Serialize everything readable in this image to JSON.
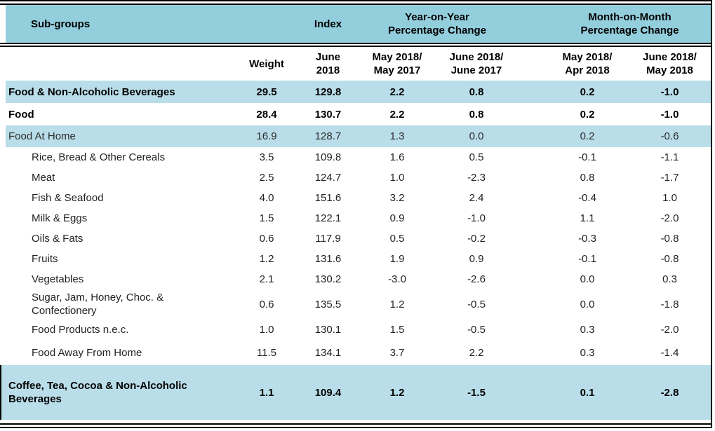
{
  "columns": {
    "subgroups": "Sub-groups",
    "index_group": "Index",
    "yoy_group": "Year-on-Year\nPercentage Change",
    "mom_group": "Month-on-Month\nPercentage Change",
    "weight": "Weight",
    "index_period": "June\n2018",
    "yoy_col1": "May 2018/\nMay 2017",
    "yoy_col2": "June 2018/\nJune 2017",
    "mom_col1": "May 2018/\nApr 2018",
    "mom_col2": "June 2018/\nMay 2018"
  },
  "rows": [
    {
      "label": "Food & Non-Alcoholic Beverages",
      "style": "emphasis-blue",
      "values": [
        "29.5",
        "129.8",
        "2.2",
        "0.8",
        "0.2",
        "-1.0"
      ]
    },
    {
      "label": "Food",
      "style": "emphasis-white",
      "values": [
        "28.4",
        "130.7",
        "2.2",
        "0.8",
        "0.2",
        "-1.0"
      ]
    },
    {
      "label": "Food At Home",
      "style": "highlight",
      "values": [
        "16.9",
        "128.7",
        "1.3",
        "0.0",
        "0.2",
        "-0.6"
      ]
    },
    {
      "label": "Rice, Bread & Other Cereals",
      "style": "item",
      "values": [
        "3.5",
        "109.8",
        "1.6",
        "0.5",
        "-0.1",
        "-1.1"
      ]
    },
    {
      "label": "Meat",
      "style": "item",
      "values": [
        "2.5",
        "124.7",
        "1.0",
        "-2.3",
        "0.8",
        "-1.7"
      ]
    },
    {
      "label": "Fish & Seafood",
      "style": "item",
      "values": [
        "4.0",
        "151.6",
        "3.2",
        "2.4",
        "-0.4",
        "1.0"
      ]
    },
    {
      "label": "Milk & Eggs",
      "style": "item",
      "values": [
        "1.5",
        "122.1",
        "0.9",
        "-1.0",
        "1.1",
        "-2.0"
      ]
    },
    {
      "label": "Oils & Fats",
      "style": "item",
      "values": [
        "0.6",
        "117.9",
        "0.5",
        "-0.2",
        "-0.3",
        "-0.8"
      ]
    },
    {
      "label": "Fruits",
      "style": "item",
      "values": [
        "1.2",
        "131.6",
        "1.9",
        "0.9",
        "-0.1",
        "-0.8"
      ]
    },
    {
      "label": "Vegetables",
      "style": "item",
      "values": [
        "2.1",
        "130.2",
        "-3.0",
        "-2.6",
        "0.0",
        "0.3"
      ]
    },
    {
      "label": "Sugar, Jam, Honey, Choc. & Confectionery",
      "style": "item item-tall",
      "values": [
        "0.6",
        "135.5",
        "1.2",
        "-0.5",
        "0.0",
        "-1.8"
      ]
    },
    {
      "label": "Food Products n.e.c.",
      "style": "item item-gap",
      "values": [
        "1.0",
        "130.1",
        "1.5",
        "-0.5",
        "0.3",
        "-2.0"
      ]
    },
    {
      "label": "Food Away From Home",
      "style": "item item-gap-lg",
      "values": [
        "11.5",
        "134.1",
        "3.7",
        "2.2",
        "0.3",
        "-1.4"
      ]
    },
    {
      "label": "Coffee, Tea, Cocoa & Non-Alcoholic Beverages",
      "style": "summary",
      "values": [
        "1.1",
        "109.4",
        "1.2",
        "-1.5",
        "0.1",
        "-2.8"
      ]
    }
  ],
  "colors": {
    "header_blue": "#93CEDD",
    "row_blue": "#B9DDE9",
    "border_black": "#000000"
  }
}
